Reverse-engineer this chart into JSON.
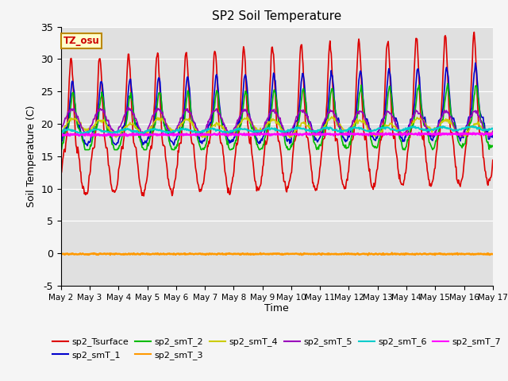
{
  "title": "SP2 Soil Temperature",
  "ylabel": "Soil Temperature (C)",
  "xlabel": "Time",
  "ylim": [
    -5,
    35
  ],
  "bg_color": "#e0e0e0",
  "fig_bg_color": "#f5f5f5",
  "tz_label": "TZ_osu",
  "series_order": [
    "sp2_Tsurface",
    "sp2_smT_1",
    "sp2_smT_2",
    "sp2_smT_3",
    "sp2_smT_4",
    "sp2_smT_5",
    "sp2_smT_6",
    "sp2_smT_7"
  ],
  "series": {
    "sp2_Tsurface": {
      "color": "#dd0000",
      "lw": 1.2
    },
    "sp2_smT_1": {
      "color": "#0000cc",
      "lw": 1.2
    },
    "sp2_smT_2": {
      "color": "#00bb00",
      "lw": 1.2
    },
    "sp2_smT_3": {
      "color": "#ff9900",
      "lw": 1.8
    },
    "sp2_smT_4": {
      "color": "#cccc00",
      "lw": 1.2
    },
    "sp2_smT_5": {
      "color": "#9900bb",
      "lw": 1.2
    },
    "sp2_smT_6": {
      "color": "#00cccc",
      "lw": 1.5
    },
    "sp2_smT_7": {
      "color": "#ff00ff",
      "lw": 1.8
    }
  },
  "n_days": 15,
  "pts_per_day": 48,
  "start_day": 2
}
